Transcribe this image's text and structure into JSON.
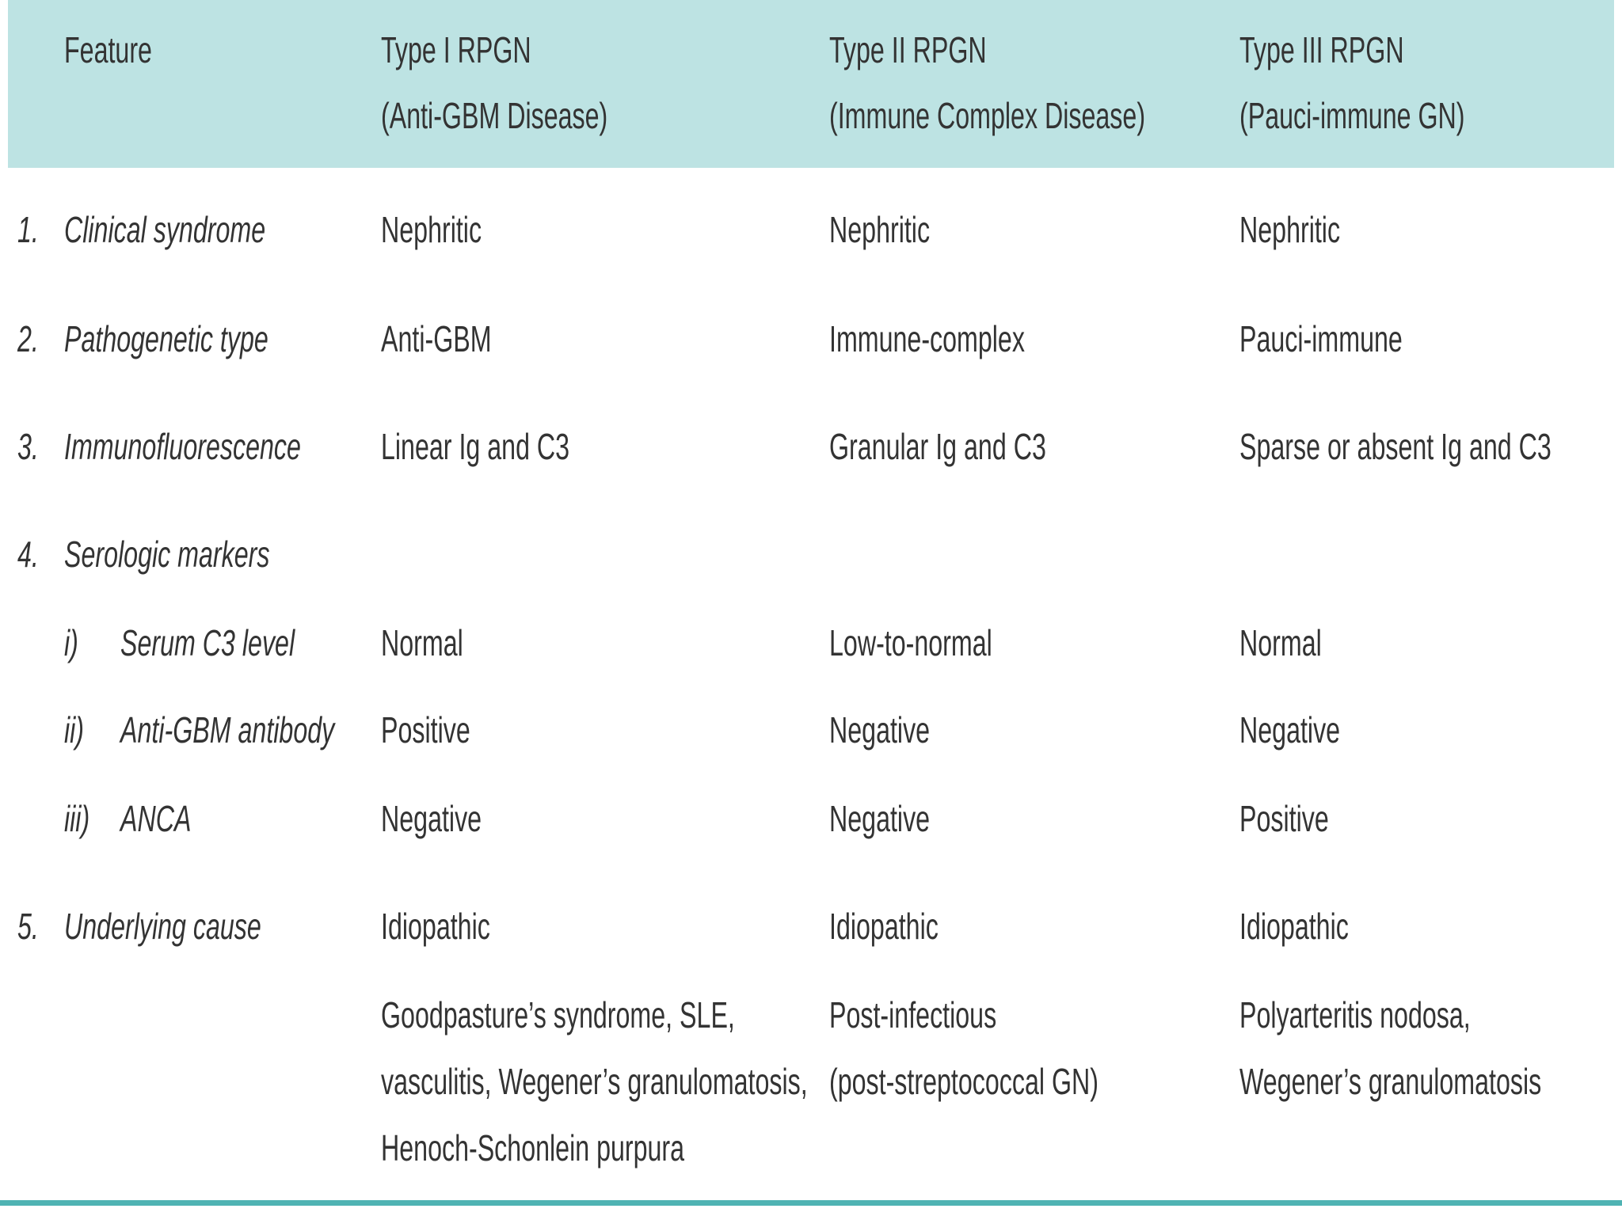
{
  "table": {
    "header": [
      [
        "Feature"
      ],
      [
        "Type I RPGN",
        "(Anti-GBM Disease)"
      ],
      [
        "Type II RPGN",
        "(Immune Complex Disease)"
      ],
      [
        "Type III RPGN",
        "(Pauci-immune GN)"
      ]
    ],
    "rows": [
      {
        "num": "1.",
        "feature": "Clinical syndrome",
        "cells": [
          "Nephritic",
          "Nephritic",
          "Nephritic"
        ]
      },
      {
        "num": "2.",
        "feature": "Pathogenetic type",
        "cells": [
          "Anti-GBM",
          "Immune-complex",
          "Pauci-immune"
        ]
      },
      {
        "num": "3.",
        "feature": "Immunofluorescence",
        "cells": [
          "Linear Ig and C3",
          "Granular Ig and C3",
          "Sparse or absent Ig and C3"
        ]
      },
      {
        "num": "4.",
        "feature": "Serologic markers",
        "cells": []
      },
      {
        "sub": "i)",
        "feature": "Serum C3 level",
        "cells": [
          "Normal",
          "Low-to-normal",
          "Normal"
        ]
      },
      {
        "sub": "ii)",
        "feature": "Anti-GBM antibody",
        "cells": [
          "Positive",
          "Negative",
          "Negative"
        ]
      },
      {
        "sub": "iii)",
        "feature": "ANCA",
        "cells": [
          "Negative",
          "Negative",
          "Positive"
        ]
      },
      {
        "num": "5.",
        "feature": "Underlying cause",
        "cells": [
          "Idiopathic",
          "Idiopathic",
          "Idiopathic"
        ]
      },
      {
        "lines": [
          [
            "Goodpasture’s syndrome, SLE,",
            "vasculitis, Wegener’s granulomatosis,",
            "Henoch-Schonlein purpura"
          ],
          [
            "Post-infectious",
            "(post-streptococcal GN)"
          ],
          [
            "Polyarteritis nodosa,",
            "Wegener’s granulomatosis"
          ]
        ]
      }
    ]
  }
}
